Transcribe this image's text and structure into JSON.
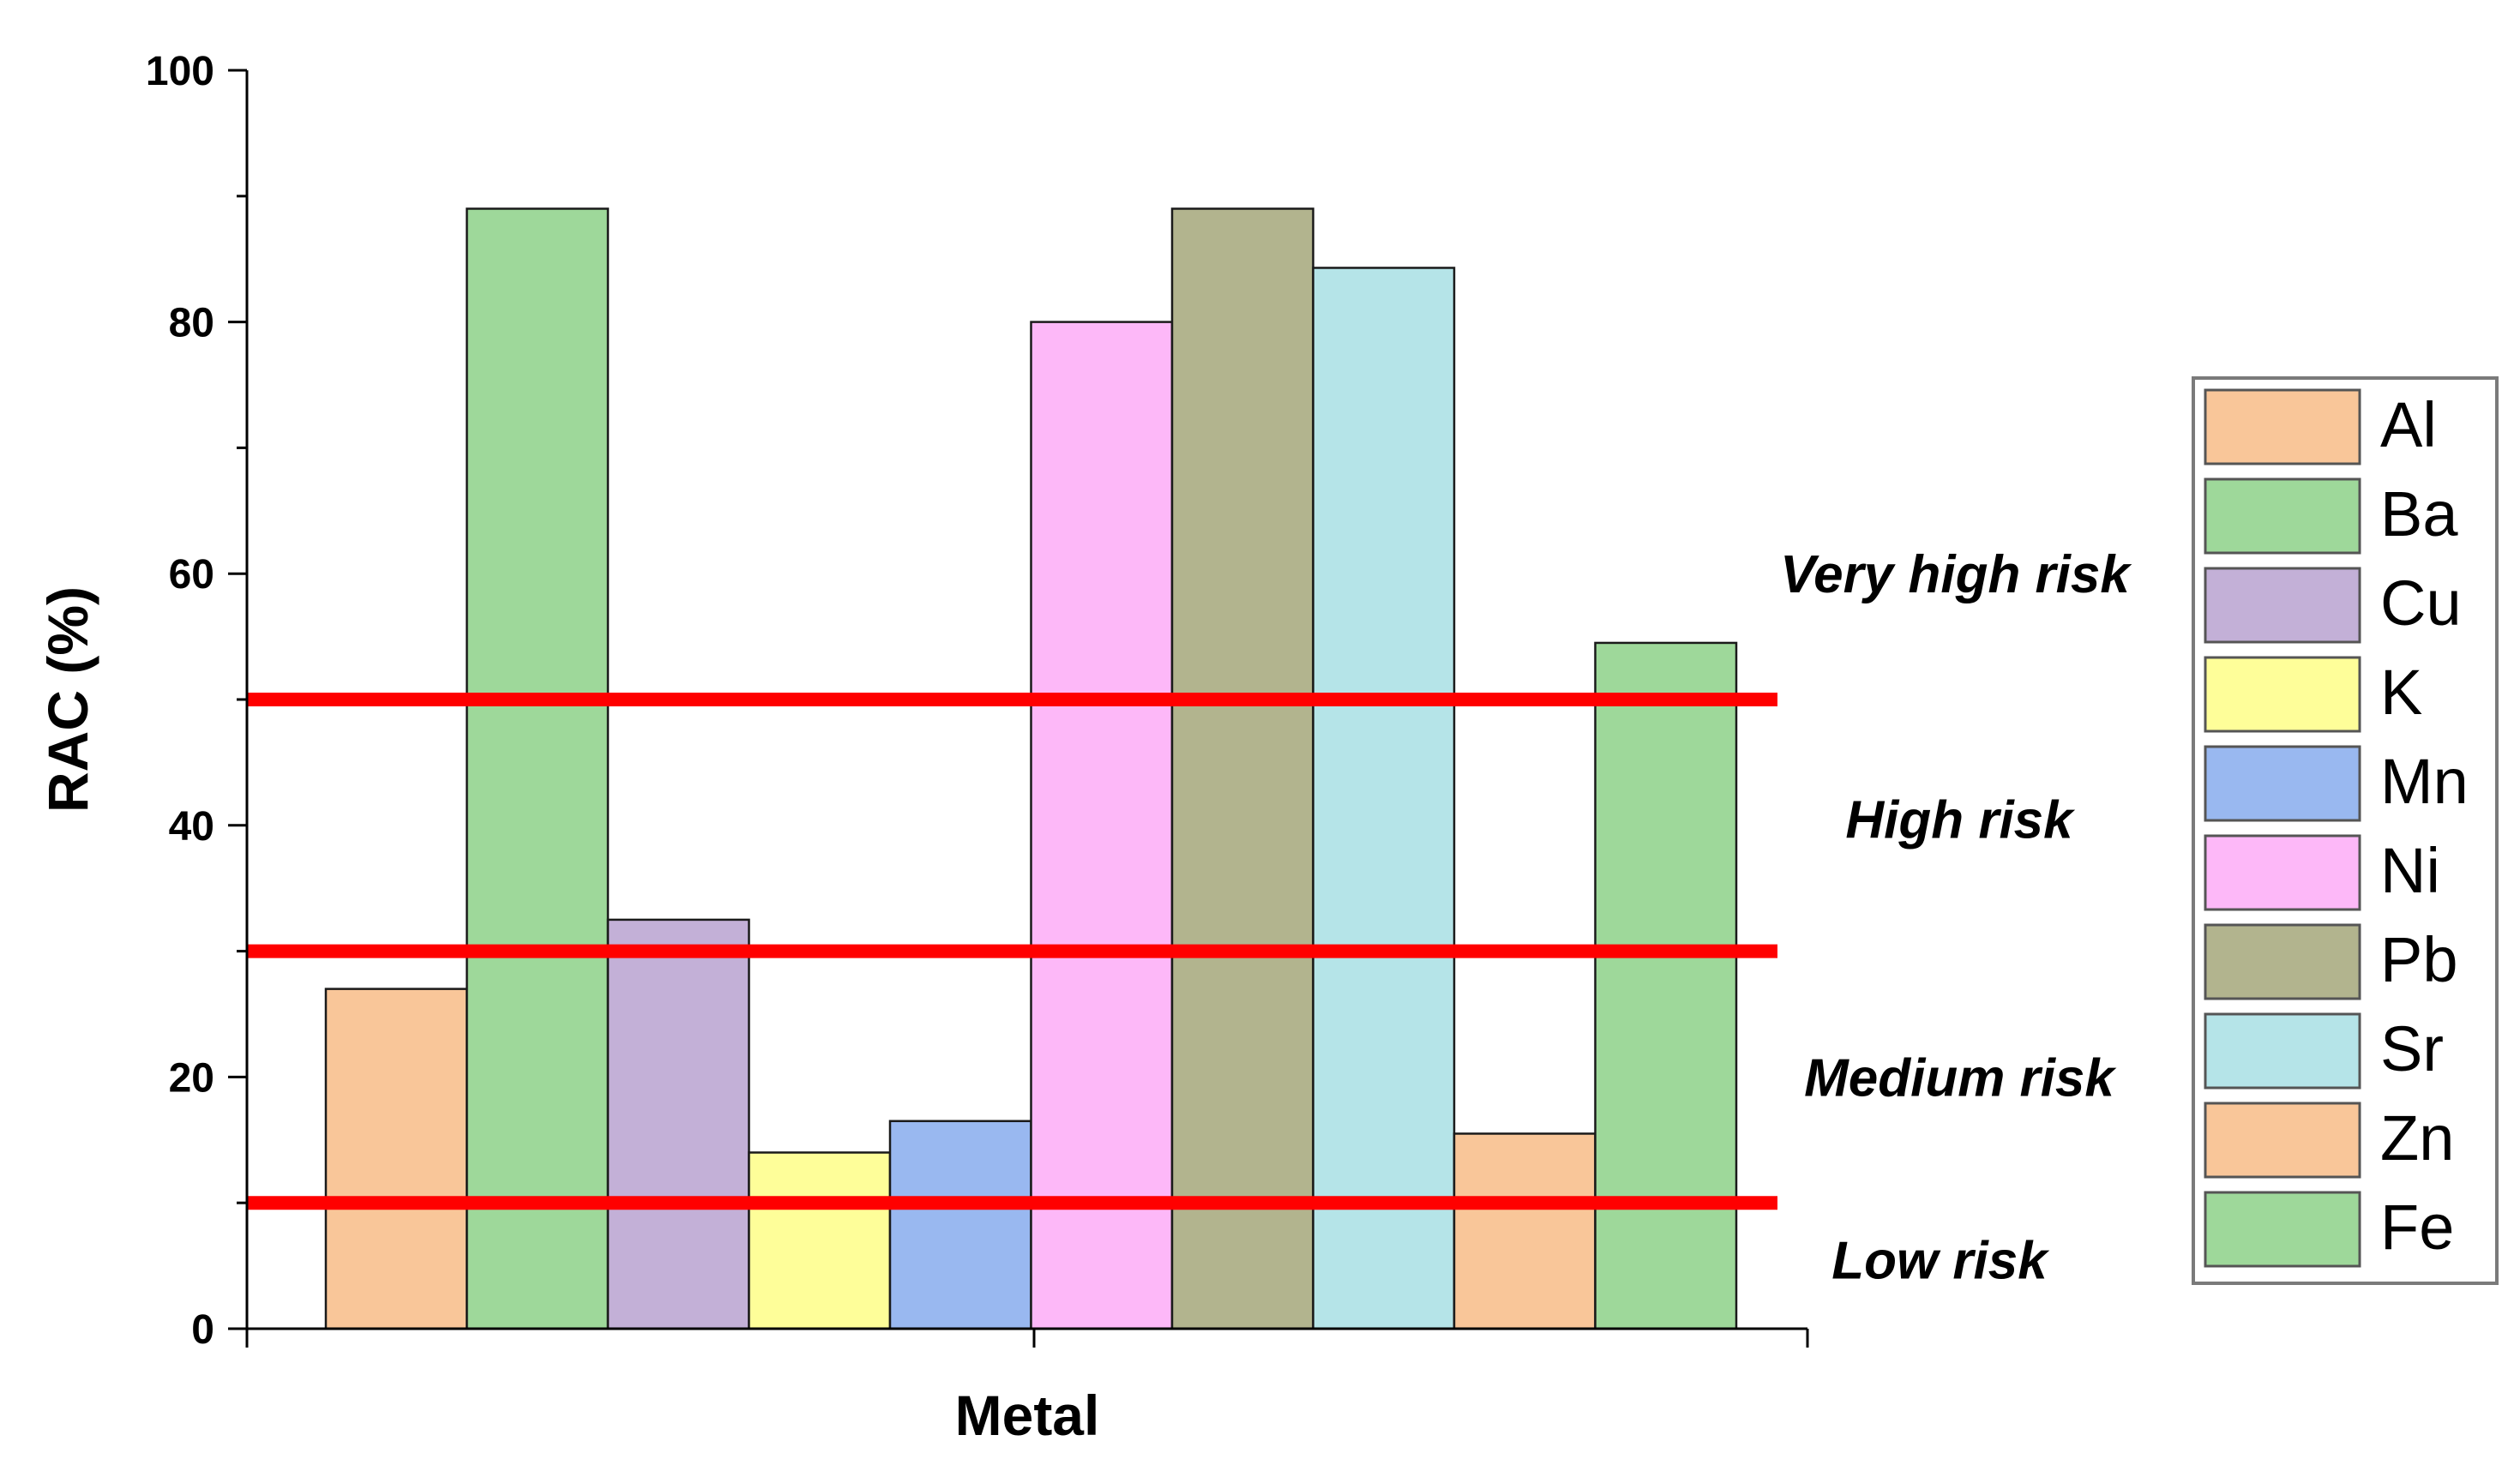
{
  "chart_data": {
    "type": "bar",
    "xlabel": "Metal",
    "ylabel": "RAC (%)",
    "ylim": [
      0,
      100
    ],
    "yticks": [
      0,
      20,
      40,
      60,
      80,
      100
    ],
    "grid": false,
    "legend_position": "right",
    "categories": [
      "Al",
      "Ba",
      "Cu",
      "K",
      "Mn",
      "Ni",
      "Pb",
      "Sr",
      "Zn",
      "Fe"
    ],
    "values": [
      27,
      89,
      32.5,
      14,
      16.5,
      80,
      89,
      84.3,
      15.5,
      54.5
    ],
    "colors": [
      "#f9c699",
      "#9ed89a",
      "#c3b0d7",
      "#fefe99",
      "#99b8f0",
      "#fdb8f8",
      "#b2b48e",
      "#b5e4e8",
      "#f9c699",
      "#9ed89a"
    ],
    "threshold_lines": [
      {
        "value": 10,
        "color": "#ff0000"
      },
      {
        "value": 30,
        "color": "#ff0000"
      },
      {
        "value": 50,
        "color": "#ff0000"
      }
    ],
    "zone_labels": [
      {
        "text": "Very high risk",
        "y": 60
      },
      {
        "text": "High risk",
        "y": 40.5
      },
      {
        "text": "Medium risk",
        "y": 20
      },
      {
        "text": "Low risk",
        "y": 5.5
      }
    ]
  }
}
